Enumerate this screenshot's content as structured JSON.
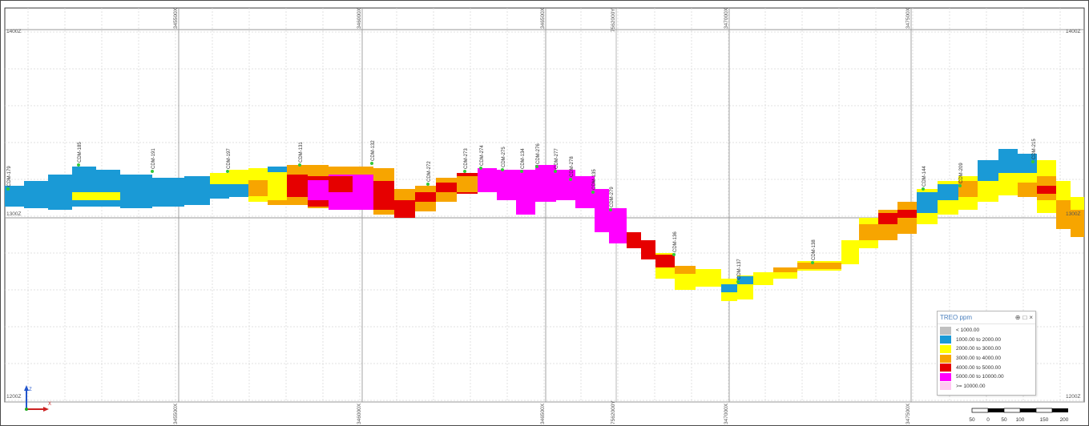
{
  "section": {
    "elevation_labels": {
      "top": "1400Z",
      "middle": "1300Z",
      "bottom": "1200Z"
    },
    "easting_labels": [
      "345500X",
      "346000X",
      "346500X",
      "347000X",
      "347500X"
    ],
    "northing_label": "7562000Y",
    "axis_tripod": {
      "z_label": "Z",
      "x_label": "X"
    }
  },
  "drillholes": [
    "CDM-179",
    "CDM-185",
    "CDM-191",
    "CDM-197",
    "CDM-131",
    "CDM-132",
    "CDM-272",
    "CDM-273",
    "CDM-274",
    "CDM-275",
    "CDM-134",
    "CDM-276",
    "CDM-277",
    "CDM-278",
    "CDM-135",
    "CDM-279",
    "CDM-136",
    "CDM-137",
    "CDM-138",
    "CDM-144",
    "CDM-209",
    "CDM-215"
  ],
  "legend": {
    "title": "TREO ppm",
    "controls": {
      "pin": "⊕",
      "float": "□",
      "close": "×"
    },
    "items": [
      {
        "label": "< 1000.00",
        "color": "#c0c0c0"
      },
      {
        "label": "1000.00 to 2000.00",
        "color": "#1a9ad6"
      },
      {
        "label": "2000.00 to 3000.00",
        "color": "#ffff00"
      },
      {
        "label": "3000.00 to 4000.00",
        "color": "#f7a500"
      },
      {
        "label": "4000.00 to 5000.00",
        "color": "#e60000"
      },
      {
        "label": "5000.00 to 10000.00",
        "color": "#ff00ff"
      },
      {
        "label": ">= 10000.00",
        "color": "#ffc8f0"
      }
    ]
  },
  "scale_bar": {
    "labels": [
      "50",
      "0",
      "50",
      "100",
      "150",
      "200"
    ]
  }
}
